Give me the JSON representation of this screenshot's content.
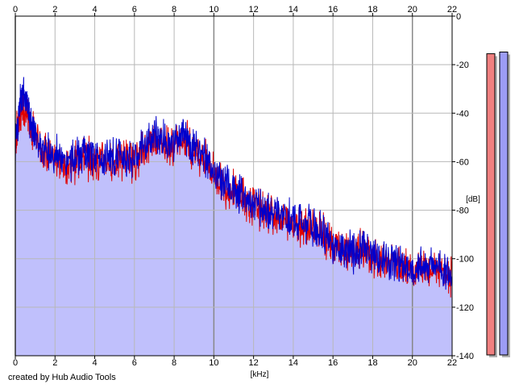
{
  "credit": "created by Hub Audio Tools",
  "colors": {
    "fill": "#c0c0fc",
    "left_channel": "#e00000",
    "right_channel": "#0000cc",
    "grid": "#b8b8b8",
    "grid_major": "#888888",
    "left_meter": "#f08080",
    "right_meter": "#9c9cf4",
    "meter_shadow": "#b0b0b0"
  },
  "chart_data": {
    "type": "area",
    "xlabel": "[kHz]",
    "ylabel": "[dB]",
    "xlim": [
      0,
      22
    ],
    "ylim": [
      -140,
      0
    ],
    "x_ticks": [
      0,
      2,
      4,
      6,
      8,
      10,
      12,
      14,
      16,
      18,
      20,
      22
    ],
    "y_ticks": [
      0,
      -20,
      -40,
      -60,
      -80,
      -100,
      -120,
      -140
    ],
    "grid": true,
    "series": [
      {
        "channel": "left",
        "color": "#e00000",
        "x": [
          0,
          0.2,
          0.4,
          0.6,
          0.8,
          1,
          1.5,
          2,
          2.5,
          3,
          3.5,
          4,
          4.5,
          5,
          5.5,
          6,
          6.5,
          7,
          7.5,
          8,
          8.5,
          9,
          9.5,
          10,
          10.5,
          11,
          11.5,
          12,
          12.5,
          13,
          13.5,
          14,
          14.5,
          15,
          15.5,
          16,
          16.5,
          17,
          17.5,
          18,
          18.5,
          19,
          19.5,
          20,
          20.5,
          21,
          21.5,
          22
        ],
        "y": [
          -52,
          -42,
          -38,
          -41,
          -45,
          -50,
          -57,
          -58,
          -62,
          -60,
          -58,
          -60,
          -59,
          -60,
          -58,
          -60,
          -55,
          -50,
          -52,
          -54,
          -50,
          -55,
          -58,
          -65,
          -70,
          -72,
          -75,
          -78,
          -80,
          -82,
          -84,
          -85,
          -86,
          -88,
          -90,
          -95,
          -97,
          -98,
          -96,
          -100,
          -102,
          -101,
          -104,
          -106,
          -104,
          -103,
          -106,
          -108
        ]
      },
      {
        "channel": "right",
        "color": "#0000cc",
        "x": [
          0,
          0.2,
          0.4,
          0.6,
          0.8,
          1,
          1.5,
          2,
          2.5,
          3,
          3.5,
          4,
          4.5,
          5,
          5.5,
          6,
          6.5,
          7,
          7.5,
          8,
          8.5,
          9,
          9.5,
          10,
          10.5,
          11,
          11.5,
          12,
          12.5,
          13,
          13.5,
          14,
          14.5,
          15,
          15.5,
          16,
          16.5,
          17,
          17.5,
          18,
          18.5,
          19,
          19.5,
          20,
          20.5,
          21,
          21.5,
          22
        ],
        "y": [
          -55,
          -38,
          -30,
          -36,
          -44,
          -50,
          -56,
          -57,
          -61,
          -59,
          -57,
          -59,
          -58,
          -59,
          -57,
          -59,
          -54,
          -49,
          -51,
          -53,
          -49,
          -54,
          -57,
          -64,
          -69,
          -71,
          -74,
          -77,
          -79,
          -81,
          -83,
          -84,
          -85,
          -87,
          -89,
          -94,
          -96,
          -97,
          -95,
          -99,
          -101,
          -100,
          -103,
          -105,
          -103,
          -102,
          -104,
          -107
        ]
      }
    ],
    "level_meters": [
      {
        "channel": "left",
        "value_db": -15.5
      },
      {
        "channel": "right",
        "value_db": -14.8
      }
    ]
  }
}
